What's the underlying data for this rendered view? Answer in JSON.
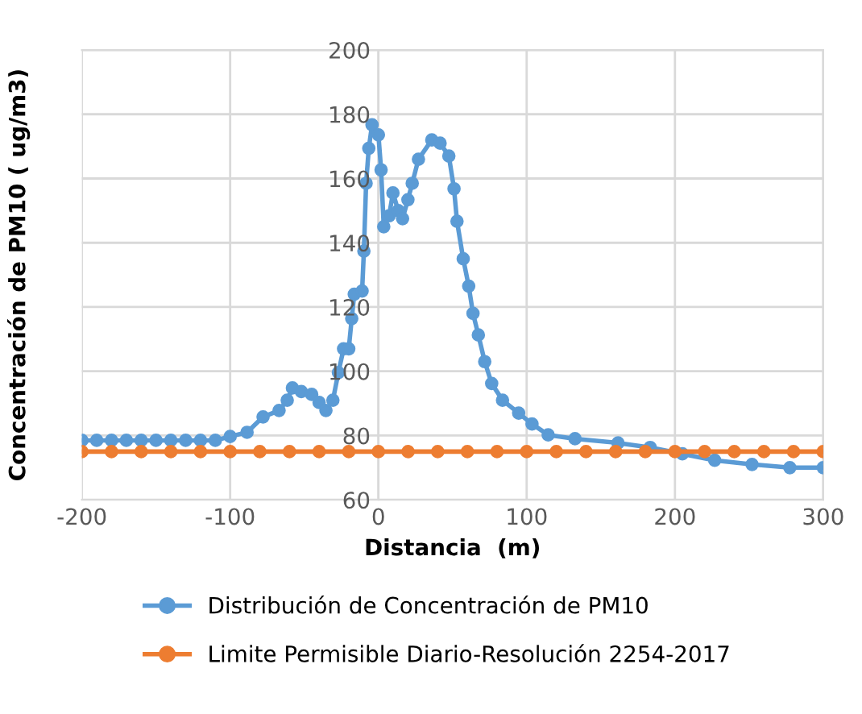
{
  "chart_data": {
    "type": "line",
    "xlabel": "Distancia  (m)",
    "ylabel": "Concentración de PM10 ( ug/m3)",
    "xlim": [
      -200,
      300
    ],
    "xticks": [
      -200,
      -100,
      0,
      100,
      200,
      300
    ],
    "ylim": [
      60,
      200
    ],
    "yticks": [
      60,
      80,
      100,
      120,
      140,
      160,
      180,
      200
    ],
    "grid": true,
    "legend": "bottom",
    "marker": "circle",
    "line_style": "solid",
    "series": [
      {
        "name": "Distribución de Concentración de PM10",
        "color": "#5b9bd5",
        "x": [
          -200,
          -190,
          -180,
          -170,
          -160,
          -150,
          -140,
          -130,
          -120,
          -110,
          -100,
          -88.6,
          -77.8,
          -67,
          -61.5,
          -58,
          -52,
          -45,
          -40,
          -35.4,
          -30.7,
          -27,
          -23.5,
          -20,
          -18,
          -16.3,
          -11,
          -9.8,
          -8.3,
          -6.5,
          -4.3,
          0,
          1.8,
          3.6,
          7.2,
          9.8,
          13.4,
          16.3,
          19.9,
          22.8,
          27,
          36,
          41.6,
          47.5,
          51,
          53,
          57.2,
          60.9,
          63.8,
          67.4,
          71.7,
          76.4,
          83.7,
          94.6,
          103.6,
          114.5,
          132.6,
          161.6,
          183.3,
          205,
          226.8,
          252,
          277.5,
          300
        ],
        "values": [
          78.5,
          78.5,
          78.5,
          78.5,
          78.5,
          78.5,
          78.5,
          78.5,
          78.5,
          78.5,
          79.7,
          81,
          85.8,
          87.8,
          91,
          94.8,
          93.7,
          92.8,
          90.3,
          87.8,
          91,
          99.6,
          107,
          107,
          116.4,
          124,
          125,
          137.4,
          158.5,
          169.4,
          176.7,
          173.6,
          162.7,
          145,
          148.4,
          155.5,
          150,
          147.5,
          153.4,
          158.5,
          166,
          172,
          171,
          167,
          156.8,
          146.7,
          135,
          126.5,
          118,
          111.3,
          103,
          96.2,
          91,
          87,
          83.6,
          80.2,
          79,
          77.7,
          76.3,
          74.3,
          72.3,
          71,
          70,
          70
        ]
      },
      {
        "name": "Limite Permisible Diario-Resolución 2254-2017",
        "color": "#ed7d31",
        "x": [
          -200,
          -180,
          -160,
          -140,
          -120,
          -100,
          -80,
          -60,
          -40,
          -20,
          0,
          20,
          40,
          60,
          80,
          100,
          120,
          140,
          160,
          180,
          200,
          220,
          240,
          260,
          280,
          300
        ],
        "values": [
          75,
          75,
          75,
          75,
          75,
          75,
          75,
          75,
          75,
          75,
          75,
          75,
          75,
          75,
          75,
          75,
          75,
          75,
          75,
          75,
          75,
          75,
          75,
          75,
          75,
          75
        ]
      }
    ]
  }
}
